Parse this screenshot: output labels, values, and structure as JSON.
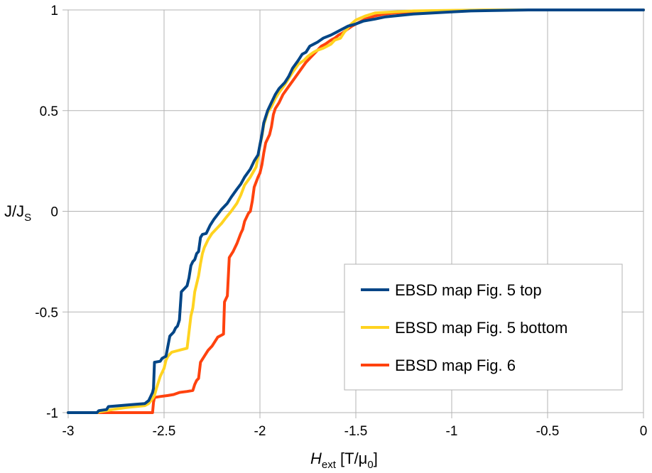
{
  "chart_data": {
    "type": "line",
    "title": "",
    "xlabel": {
      "main": "H",
      "sub": "ext",
      "rest_before": " [T/μ",
      "rest_sub": "0",
      "rest_after": "]"
    },
    "ylabel": {
      "main": "J/J",
      "sub": "S"
    },
    "xlim": [
      -3,
      0
    ],
    "ylim": [
      -1,
      1
    ],
    "x_ticks": [
      -3,
      -2.5,
      -2,
      -1.5,
      -1,
      -0.5,
      0
    ],
    "x_tick_labels": [
      "-3",
      "-2.5",
      "-2",
      "-1.5",
      "-1",
      "-0.5",
      "0"
    ],
    "y_ticks": [
      -1,
      -0.5,
      0,
      0.5,
      1
    ],
    "y_tick_labels": [
      "-1",
      "-0.5",
      "0",
      "0.5",
      "1"
    ],
    "grid": true,
    "legend_position": "bottom-right",
    "series": [
      {
        "name": "EBSD map Fig. 5 top",
        "color": "#004586",
        "points": [
          [
            -3.0,
            -1.0
          ],
          [
            -2.85,
            -1.0
          ],
          [
            -2.84,
            -0.99
          ],
          [
            -2.8,
            -0.985
          ],
          [
            -2.79,
            -0.97
          ],
          [
            -2.73,
            -0.965
          ],
          [
            -2.67,
            -0.96
          ],
          [
            -2.6,
            -0.955
          ],
          [
            -2.58,
            -0.94
          ],
          [
            -2.57,
            -0.92
          ],
          [
            -2.56,
            -0.9
          ],
          [
            -2.555,
            -0.88
          ],
          [
            -2.55,
            -0.75
          ],
          [
            -2.52,
            -0.745
          ],
          [
            -2.51,
            -0.73
          ],
          [
            -2.49,
            -0.72
          ],
          [
            -2.48,
            -0.67
          ],
          [
            -2.47,
            -0.62
          ],
          [
            -2.45,
            -0.6
          ],
          [
            -2.44,
            -0.58
          ],
          [
            -2.43,
            -0.57
          ],
          [
            -2.42,
            -0.54
          ],
          [
            -2.41,
            -0.4
          ],
          [
            -2.39,
            -0.38
          ],
          [
            -2.38,
            -0.37
          ],
          [
            -2.37,
            -0.33
          ],
          [
            -2.36,
            -0.27
          ],
          [
            -2.35,
            -0.25
          ],
          [
            -2.34,
            -0.24
          ],
          [
            -2.33,
            -0.21
          ],
          [
            -2.32,
            -0.2
          ],
          [
            -2.31,
            -0.13
          ],
          [
            -2.3,
            -0.115
          ],
          [
            -2.28,
            -0.11
          ],
          [
            -2.27,
            -0.09
          ],
          [
            -2.26,
            -0.07
          ],
          [
            -2.24,
            -0.04
          ],
          [
            -2.22,
            -0.015
          ],
          [
            -2.2,
            0.01
          ],
          [
            -2.17,
            0.04
          ],
          [
            -2.15,
            0.07
          ],
          [
            -2.12,
            0.11
          ],
          [
            -2.1,
            0.135
          ],
          [
            -2.08,
            0.17
          ],
          [
            -2.05,
            0.21
          ],
          [
            -2.03,
            0.25
          ],
          [
            -2.01,
            0.28
          ],
          [
            -2.0,
            0.33
          ],
          [
            -1.99,
            0.38
          ],
          [
            -1.98,
            0.44
          ],
          [
            -1.97,
            0.47
          ],
          [
            -1.96,
            0.5
          ],
          [
            -1.94,
            0.54
          ],
          [
            -1.92,
            0.58
          ],
          [
            -1.9,
            0.61
          ],
          [
            -1.87,
            0.64
          ],
          [
            -1.85,
            0.67
          ],
          [
            -1.83,
            0.71
          ],
          [
            -1.8,
            0.75
          ],
          [
            -1.78,
            0.78
          ],
          [
            -1.76,
            0.79
          ],
          [
            -1.74,
            0.82
          ],
          [
            -1.72,
            0.83
          ],
          [
            -1.7,
            0.84
          ],
          [
            -1.67,
            0.86
          ],
          [
            -1.63,
            0.875
          ],
          [
            -1.6,
            0.89
          ],
          [
            -1.57,
            0.905
          ],
          [
            -1.54,
            0.92
          ],
          [
            -1.5,
            0.93
          ],
          [
            -1.46,
            0.945
          ],
          [
            -1.4,
            0.955
          ],
          [
            -1.35,
            0.965
          ],
          [
            -1.3,
            0.97
          ],
          [
            -1.25,
            0.975
          ],
          [
            -1.2,
            0.98
          ],
          [
            -1.1,
            0.985
          ],
          [
            -1.0,
            0.99
          ],
          [
            -0.9,
            0.995
          ],
          [
            -0.8,
            0.997
          ],
          [
            -0.6,
            1.0
          ],
          [
            0.0,
            1.0
          ]
        ]
      },
      {
        "name": "EBSD map Fig. 5 bottom",
        "color": "#ffd320",
        "points": [
          [
            -3.0,
            -1.0
          ],
          [
            -2.85,
            -1.0
          ],
          [
            -2.83,
            -0.995
          ],
          [
            -2.77,
            -0.985
          ],
          [
            -2.7,
            -0.975
          ],
          [
            -2.65,
            -0.97
          ],
          [
            -2.6,
            -0.965
          ],
          [
            -2.58,
            -0.955
          ],
          [
            -2.56,
            -0.93
          ],
          [
            -2.55,
            -0.915
          ],
          [
            -2.54,
            -0.88
          ],
          [
            -2.53,
            -0.85
          ],
          [
            -2.52,
            -0.82
          ],
          [
            -2.51,
            -0.8
          ],
          [
            -2.5,
            -0.78
          ],
          [
            -2.49,
            -0.74
          ],
          [
            -2.48,
            -0.72
          ],
          [
            -2.46,
            -0.7
          ],
          [
            -2.44,
            -0.695
          ],
          [
            -2.4,
            -0.685
          ],
          [
            -2.38,
            -0.68
          ],
          [
            -2.37,
            -0.6
          ],
          [
            -2.36,
            -0.52
          ],
          [
            -2.35,
            -0.48
          ],
          [
            -2.34,
            -0.4
          ],
          [
            -2.33,
            -0.36
          ],
          [
            -2.32,
            -0.32
          ],
          [
            -2.31,
            -0.26
          ],
          [
            -2.3,
            -0.21
          ],
          [
            -2.29,
            -0.18
          ],
          [
            -2.28,
            -0.16
          ],
          [
            -2.27,
            -0.14
          ],
          [
            -2.25,
            -0.11
          ],
          [
            -2.22,
            -0.08
          ],
          [
            -2.2,
            -0.06
          ],
          [
            -2.18,
            -0.035
          ],
          [
            -2.15,
            0.0
          ],
          [
            -2.12,
            0.04
          ],
          [
            -2.1,
            0.08
          ],
          [
            -2.08,
            0.13
          ],
          [
            -2.05,
            0.17
          ],
          [
            -2.02,
            0.22
          ],
          [
            -2.01,
            0.27
          ],
          [
            -2.0,
            0.33
          ],
          [
            -1.99,
            0.37
          ],
          [
            -1.98,
            0.43
          ],
          [
            -1.97,
            0.46
          ],
          [
            -1.96,
            0.49
          ],
          [
            -1.94,
            0.52
          ],
          [
            -1.92,
            0.56
          ],
          [
            -1.9,
            0.59
          ],
          [
            -1.87,
            0.63
          ],
          [
            -1.85,
            0.66
          ],
          [
            -1.83,
            0.69
          ],
          [
            -1.8,
            0.73
          ],
          [
            -1.77,
            0.75
          ],
          [
            -1.75,
            0.77
          ],
          [
            -1.72,
            0.79
          ],
          [
            -1.7,
            0.8
          ],
          [
            -1.67,
            0.81
          ],
          [
            -1.63,
            0.83
          ],
          [
            -1.61,
            0.85
          ],
          [
            -1.58,
            0.86
          ],
          [
            -1.56,
            0.89
          ],
          [
            -1.55,
            0.9
          ],
          [
            -1.53,
            0.925
          ],
          [
            -1.5,
            0.95
          ],
          [
            -1.45,
            0.97
          ],
          [
            -1.4,
            0.985
          ],
          [
            -1.3,
            0.99
          ],
          [
            -1.2,
            0.995
          ],
          [
            -1.0,
            0.998
          ],
          [
            -0.8,
            1.0
          ],
          [
            0.0,
            1.0
          ]
        ]
      },
      {
        "name": "EBSD map Fig. 6",
        "color": "#ff420e",
        "points": [
          [
            -3.0,
            -1.0
          ],
          [
            -2.56,
            -1.0
          ],
          [
            -2.555,
            -0.95
          ],
          [
            -2.55,
            -0.925
          ],
          [
            -2.52,
            -0.92
          ],
          [
            -2.48,
            -0.915
          ],
          [
            -2.45,
            -0.91
          ],
          [
            -2.42,
            -0.9
          ],
          [
            -2.38,
            -0.895
          ],
          [
            -2.35,
            -0.89
          ],
          [
            -2.34,
            -0.86
          ],
          [
            -2.33,
            -0.84
          ],
          [
            -2.32,
            -0.83
          ],
          [
            -2.31,
            -0.75
          ],
          [
            -2.29,
            -0.72
          ],
          [
            -2.27,
            -0.69
          ],
          [
            -2.25,
            -0.67
          ],
          [
            -2.23,
            -0.64
          ],
          [
            -2.22,
            -0.625
          ],
          [
            -2.2,
            -0.615
          ],
          [
            -2.19,
            -0.61
          ],
          [
            -2.185,
            -0.45
          ],
          [
            -2.17,
            -0.42
          ],
          [
            -2.16,
            -0.23
          ],
          [
            -2.14,
            -0.2
          ],
          [
            -2.12,
            -0.16
          ],
          [
            -2.1,
            -0.11
          ],
          [
            -2.09,
            -0.09
          ],
          [
            -2.08,
            -0.05
          ],
          [
            -2.06,
            -0.01
          ],
          [
            -2.05,
            0.0
          ],
          [
            -2.04,
            0.05
          ],
          [
            -2.03,
            0.12
          ],
          [
            -2.01,
            0.17
          ],
          [
            -2.0,
            0.19
          ],
          [
            -1.99,
            0.23
          ],
          [
            -1.98,
            0.29
          ],
          [
            -1.97,
            0.34
          ],
          [
            -1.96,
            0.36
          ],
          [
            -1.95,
            0.38
          ],
          [
            -1.94,
            0.42
          ],
          [
            -1.93,
            0.48
          ],
          [
            -1.92,
            0.51
          ],
          [
            -1.9,
            0.54
          ],
          [
            -1.88,
            0.58
          ],
          [
            -1.85,
            0.62
          ],
          [
            -1.82,
            0.66
          ],
          [
            -1.79,
            0.7
          ],
          [
            -1.76,
            0.74
          ],
          [
            -1.74,
            0.76
          ],
          [
            -1.72,
            0.78
          ],
          [
            -1.7,
            0.8
          ],
          [
            -1.68,
            0.82
          ],
          [
            -1.66,
            0.83
          ],
          [
            -1.63,
            0.85
          ],
          [
            -1.61,
            0.86
          ],
          [
            -1.59,
            0.875
          ],
          [
            -1.57,
            0.885
          ],
          [
            -1.55,
            0.9
          ],
          [
            -1.52,
            0.92
          ],
          [
            -1.48,
            0.94
          ],
          [
            -1.45,
            0.955
          ],
          [
            -1.4,
            0.97
          ],
          [
            -1.35,
            0.98
          ],
          [
            -1.3,
            0.985
          ],
          [
            -1.2,
            0.99
          ],
          [
            -1.1,
            0.995
          ],
          [
            -0.9,
            0.998
          ],
          [
            -0.8,
            1.0
          ],
          [
            0.0,
            1.0
          ]
        ]
      }
    ]
  }
}
